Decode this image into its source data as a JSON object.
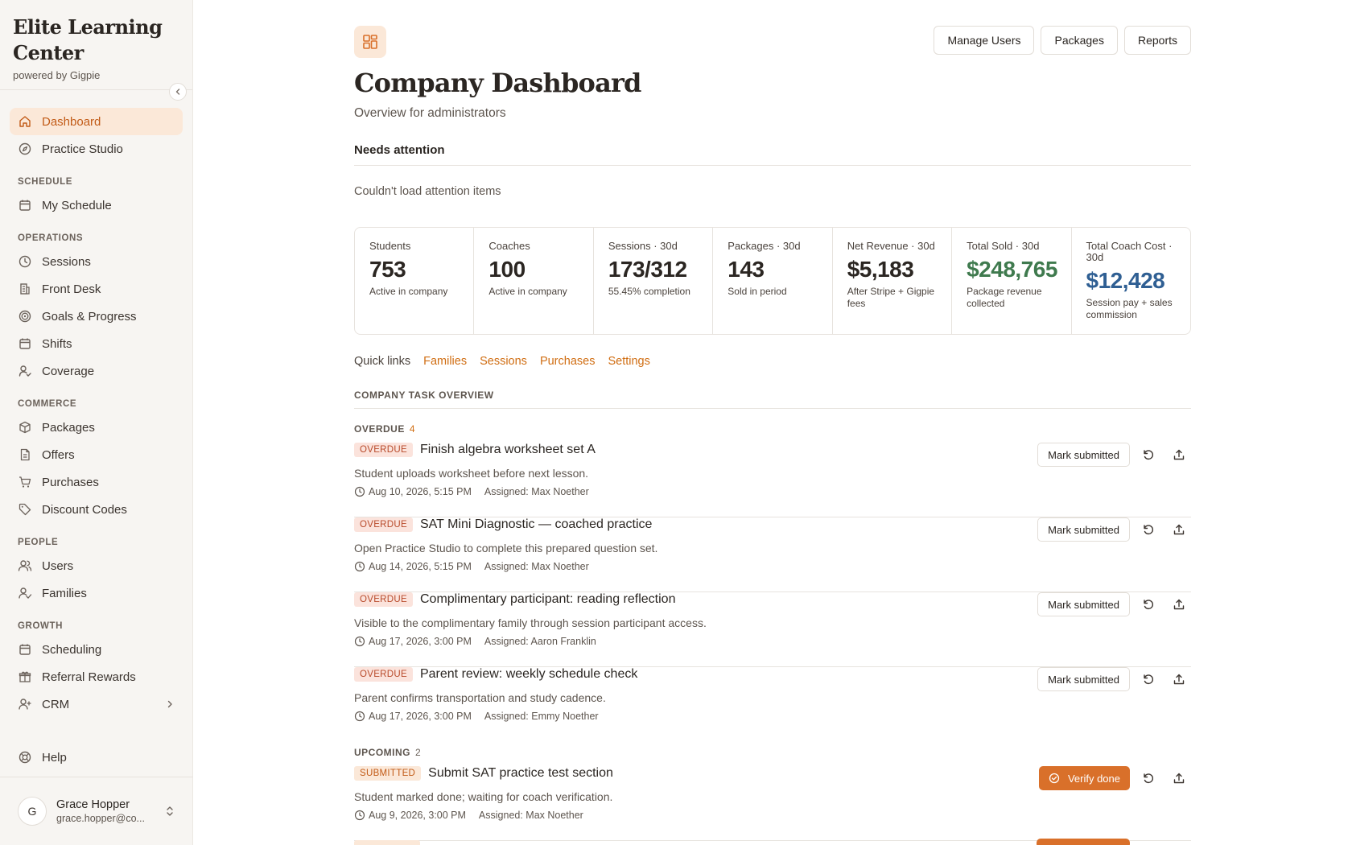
{
  "brand": {
    "title": "Elite Learning Center",
    "subtitle": "powered by Gigpie"
  },
  "sidebar": {
    "top_items": [
      {
        "label": "Dashboard",
        "icon": "home-icon",
        "active": true
      },
      {
        "label": "Practice Studio",
        "icon": "compass-icon"
      }
    ],
    "sections": [
      {
        "title": "SCHEDULE",
        "items": [
          {
            "label": "My Schedule",
            "icon": "calendar-icon"
          }
        ]
      },
      {
        "title": "OPERATIONS",
        "items": [
          {
            "label": "Sessions",
            "icon": "clock-icon"
          },
          {
            "label": "Front Desk",
            "icon": "building-icon"
          },
          {
            "label": "Goals & Progress",
            "icon": "target-icon"
          },
          {
            "label": "Shifts",
            "icon": "calendar-icon"
          },
          {
            "label": "Coverage",
            "icon": "user-check-icon"
          }
        ]
      },
      {
        "title": "COMMERCE",
        "items": [
          {
            "label": "Packages",
            "icon": "package-icon"
          },
          {
            "label": "Offers",
            "icon": "document-icon"
          },
          {
            "label": "Purchases",
            "icon": "cart-icon"
          },
          {
            "label": "Discount Codes",
            "icon": "tag-icon"
          }
        ]
      },
      {
        "title": "PEOPLE",
        "items": [
          {
            "label": "Users",
            "icon": "users-icon"
          },
          {
            "label": "Families",
            "icon": "family-icon"
          }
        ]
      },
      {
        "title": "GROWTH",
        "items": [
          {
            "label": "Scheduling",
            "icon": "calendar-icon"
          },
          {
            "label": "Referral Rewards",
            "icon": "gift-icon"
          },
          {
            "label": "CRM",
            "icon": "user-plus-icon"
          }
        ]
      }
    ],
    "help": "Help",
    "user": {
      "initial": "G",
      "name": "Grace Hopper",
      "email": "grace.hopper@co..."
    }
  },
  "header": {
    "title": "Company Dashboard",
    "subtitle": "Overview for administrators",
    "buttons": [
      "Manage Users",
      "Packages",
      "Reports"
    ]
  },
  "attention": {
    "title": "Needs attention",
    "message": "Couldn't load attention items"
  },
  "stats": [
    {
      "label": "Students",
      "value": "753",
      "note": "Active in company"
    },
    {
      "label": "Coaches",
      "value": "100",
      "note": "Active in company"
    },
    {
      "label": "Sessions · 30d",
      "value": "173/312",
      "note": "55.45% completion"
    },
    {
      "label": "Packages · 30d",
      "value": "143",
      "note": "Sold in period"
    },
    {
      "label": "Net Revenue · 30d",
      "value": "$5,183",
      "note": "After Stripe + Gigpie fees"
    },
    {
      "label": "Total Sold · 30d",
      "value": "$248,765",
      "note": "Package revenue collected",
      "color": "#3f7a4e"
    },
    {
      "label": "Total Coach Cost · 30d",
      "value": "$12,428",
      "note": "Session pay + sales commission",
      "color": "#2f5f93"
    }
  ],
  "quick_links": {
    "label": "Quick links",
    "links": [
      "Families",
      "Sessions",
      "Purchases",
      "Settings"
    ]
  },
  "tasks": {
    "title": "COMPANY TASK OVERVIEW",
    "groups": [
      {
        "label": "OVERDUE",
        "count": "4",
        "items": [
          {
            "badge": "OVERDUE",
            "title": "Finish algebra worksheet set A",
            "desc": "Student uploads worksheet before next lesson.",
            "date": "Aug 10, 2026, 5:15 PM",
            "assigned": "Assigned: Max Noether",
            "action": "Mark submitted"
          },
          {
            "badge": "OVERDUE",
            "title": "SAT Mini Diagnostic — coached practice",
            "desc": "Open Practice Studio to complete this prepared question set.",
            "date": "Aug 14, 2026, 5:15 PM",
            "assigned": "Assigned: Max Noether",
            "action": "Mark submitted"
          },
          {
            "badge": "OVERDUE",
            "title": "Complimentary participant: reading reflection",
            "desc": "Visible to the complimentary family through session participant access.",
            "date": "Aug 17, 2026, 3:00 PM",
            "assigned": "Assigned: Aaron Franklin",
            "action": "Mark submitted"
          },
          {
            "badge": "OVERDUE",
            "title": "Parent review: weekly schedule check",
            "desc": "Parent confirms transportation and study cadence.",
            "date": "Aug 17, 2026, 3:00 PM",
            "assigned": "Assigned: Emmy Noether",
            "action": "Mark submitted"
          }
        ]
      },
      {
        "label": "UPCOMING",
        "count": "2",
        "items": [
          {
            "badge": "SUBMITTED",
            "title": "Submit SAT practice test section",
            "desc": "Student marked done; waiting for coach verification.",
            "date": "Aug 9, 2026, 3:00 PM",
            "assigned": "Assigned: Max Noether",
            "action": "Verify done"
          }
        ]
      }
    ]
  }
}
